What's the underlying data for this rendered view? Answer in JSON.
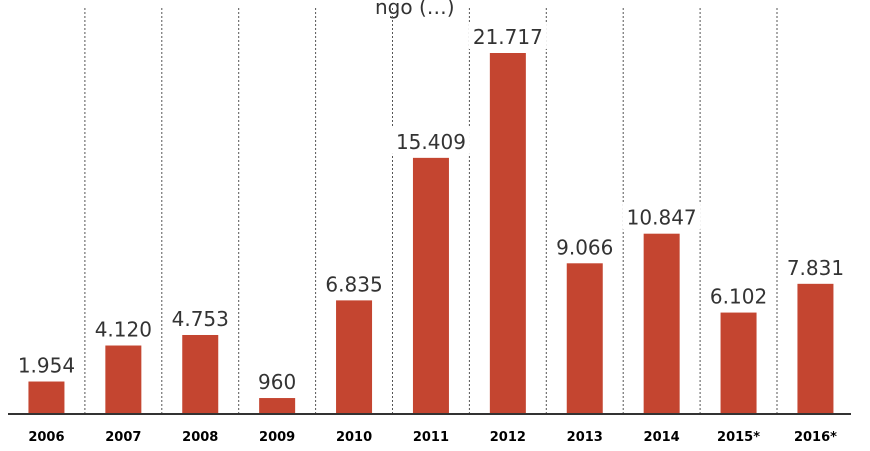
{
  "chart_data": {
    "type": "bar",
    "title": "",
    "title_fragment": "ngo (…)",
    "xlabel": "",
    "ylabel": "",
    "categories": [
      "2006",
      "2007",
      "2008",
      "2009",
      "2010",
      "2011",
      "2012",
      "2013",
      "2014",
      "2015*",
      "2016*"
    ],
    "values": [
      1954,
      4120,
      4753,
      960,
      6835,
      15409,
      21717,
      9066,
      10847,
      6102,
      7831
    ],
    "value_labels": [
      "1.954",
      "4.120",
      "4.753",
      "960",
      "6.835",
      "15.409",
      "21.717",
      "9.066",
      "10.847",
      "6.102",
      "7.831"
    ],
    "ylim": [
      0,
      22000
    ],
    "grid": "vertical dotted separators between categories",
    "legend": "none",
    "colors": {
      "bar": "#c44530",
      "separator": "#555555",
      "axis": "#333333",
      "text": "#333333"
    }
  }
}
